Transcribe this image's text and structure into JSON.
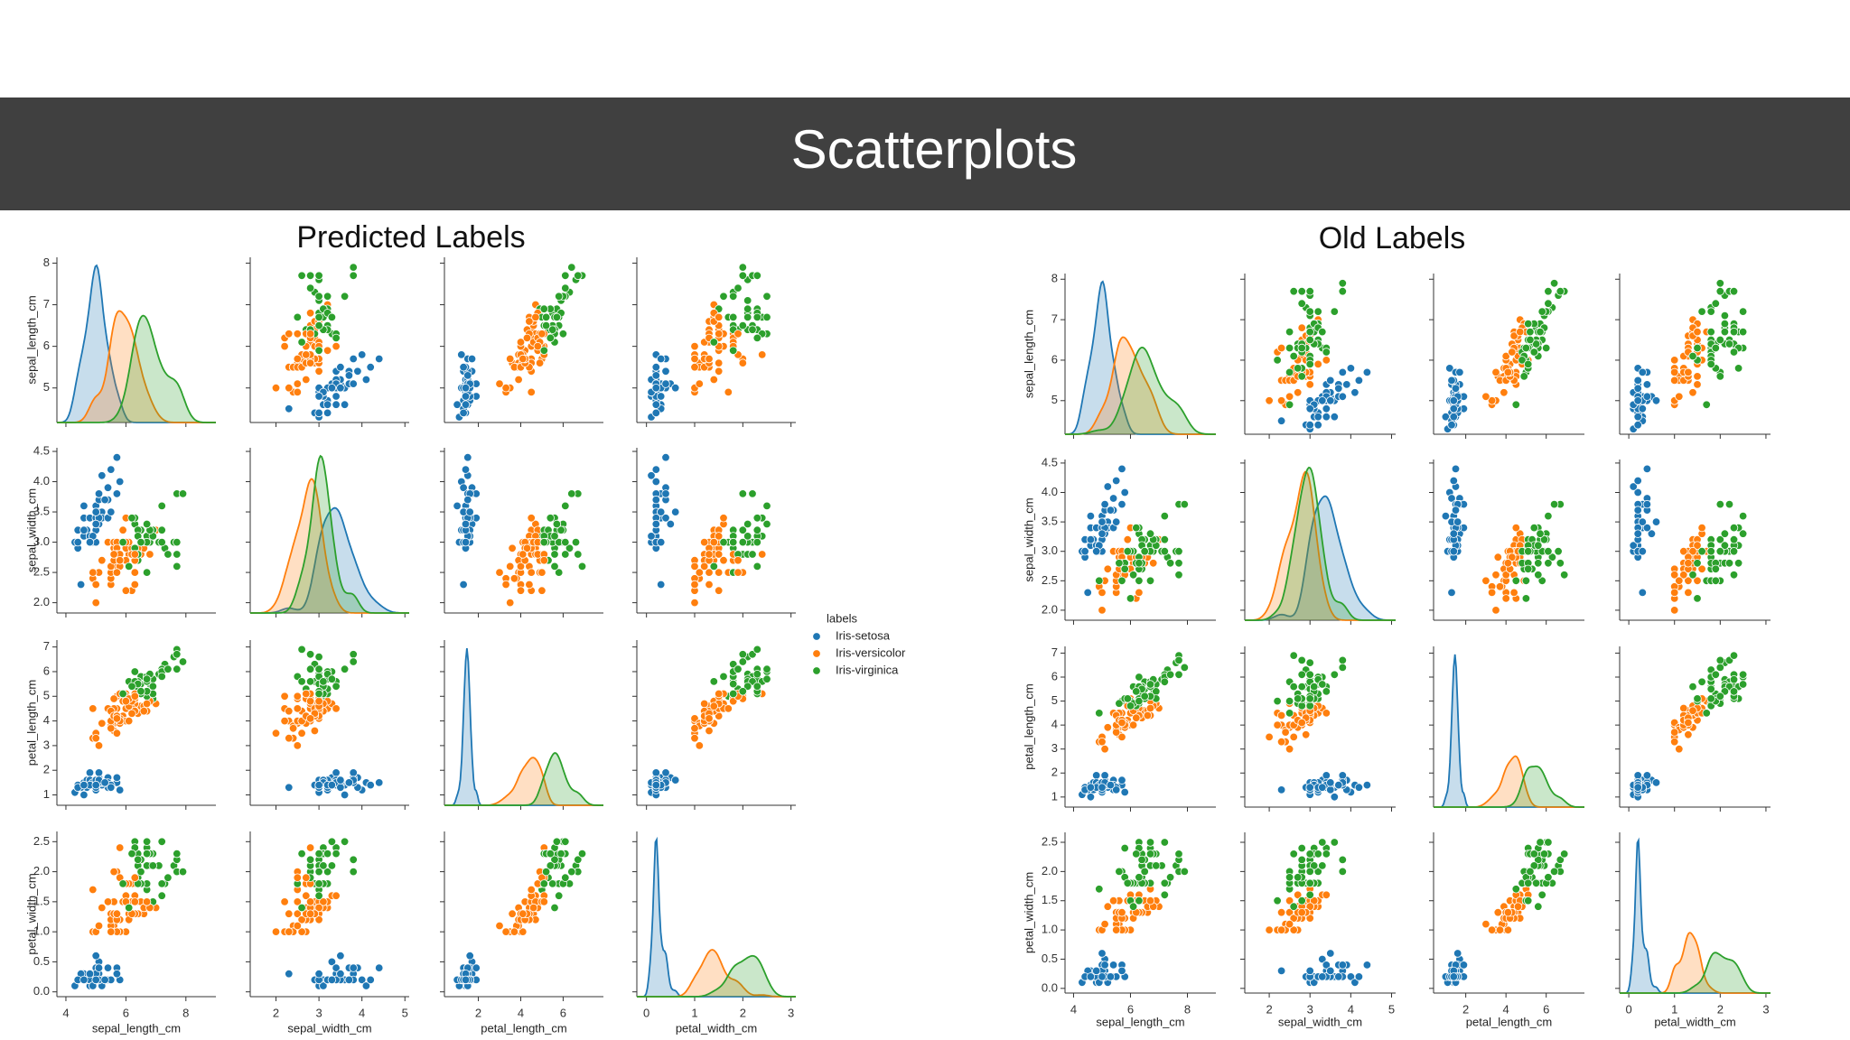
{
  "header": {
    "title": "Scatterplots"
  },
  "dataset": {
    "columns": [
      "sepal_length_cm",
      "sepal_width_cm",
      "petal_length_cm",
      "petal_width_cm"
    ],
    "rows": [
      [
        5.1,
        3.5,
        1.4,
        0.2
      ],
      [
        4.9,
        3.0,
        1.4,
        0.2
      ],
      [
        4.7,
        3.2,
        1.3,
        0.2
      ],
      [
        4.6,
        3.1,
        1.5,
        0.2
      ],
      [
        5.0,
        3.6,
        1.4,
        0.2
      ],
      [
        5.4,
        3.9,
        1.7,
        0.4
      ],
      [
        4.6,
        3.4,
        1.4,
        0.3
      ],
      [
        5.0,
        3.4,
        1.5,
        0.2
      ],
      [
        4.4,
        2.9,
        1.4,
        0.2
      ],
      [
        4.9,
        3.1,
        1.5,
        0.1
      ],
      [
        5.4,
        3.7,
        1.5,
        0.2
      ],
      [
        4.8,
        3.4,
        1.6,
        0.2
      ],
      [
        4.8,
        3.0,
        1.4,
        0.1
      ],
      [
        4.3,
        3.0,
        1.1,
        0.1
      ],
      [
        5.8,
        4.0,
        1.2,
        0.2
      ],
      [
        5.7,
        4.4,
        1.5,
        0.4
      ],
      [
        5.4,
        3.9,
        1.3,
        0.4
      ],
      [
        5.1,
        3.5,
        1.4,
        0.3
      ],
      [
        5.7,
        3.8,
        1.7,
        0.3
      ],
      [
        5.1,
        3.8,
        1.5,
        0.3
      ],
      [
        5.4,
        3.4,
        1.7,
        0.2
      ],
      [
        5.1,
        3.7,
        1.5,
        0.4
      ],
      [
        4.6,
        3.6,
        1.0,
        0.2
      ],
      [
        5.1,
        3.3,
        1.7,
        0.5
      ],
      [
        4.8,
        3.4,
        1.9,
        0.2
      ],
      [
        5.0,
        3.0,
        1.6,
        0.2
      ],
      [
        5.0,
        3.4,
        1.6,
        0.4
      ],
      [
        5.2,
        3.5,
        1.5,
        0.2
      ],
      [
        5.2,
        3.4,
        1.4,
        0.2
      ],
      [
        4.7,
        3.2,
        1.6,
        0.2
      ],
      [
        4.8,
        3.1,
        1.6,
        0.2
      ],
      [
        5.4,
        3.4,
        1.5,
        0.4
      ],
      [
        5.2,
        4.1,
        1.5,
        0.1
      ],
      [
        5.5,
        4.2,
        1.4,
        0.2
      ],
      [
        4.9,
        3.1,
        1.5,
        0.1
      ],
      [
        5.0,
        3.2,
        1.2,
        0.2
      ],
      [
        5.5,
        3.5,
        1.3,
        0.2
      ],
      [
        4.9,
        3.1,
        1.5,
        0.1
      ],
      [
        4.4,
        3.0,
        1.3,
        0.2
      ],
      [
        5.1,
        3.4,
        1.5,
        0.2
      ],
      [
        5.0,
        3.5,
        1.3,
        0.3
      ],
      [
        4.5,
        2.3,
        1.3,
        0.3
      ],
      [
        4.4,
        3.2,
        1.3,
        0.2
      ],
      [
        5.0,
        3.5,
        1.6,
        0.6
      ],
      [
        5.1,
        3.8,
        1.9,
        0.4
      ],
      [
        4.8,
        3.0,
        1.4,
        0.3
      ],
      [
        5.1,
        3.8,
        1.6,
        0.2
      ],
      [
        4.6,
        3.2,
        1.4,
        0.2
      ],
      [
        5.3,
        3.7,
        1.5,
        0.2
      ],
      [
        5.0,
        3.3,
        1.4,
        0.2
      ],
      [
        7.0,
        3.2,
        4.7,
        1.4
      ],
      [
        6.4,
        3.2,
        4.5,
        1.5
      ],
      [
        6.9,
        3.1,
        4.9,
        1.5
      ],
      [
        5.5,
        2.3,
        4.0,
        1.3
      ],
      [
        6.5,
        2.8,
        4.6,
        1.5
      ],
      [
        5.7,
        2.8,
        4.5,
        1.3
      ],
      [
        6.3,
        3.3,
        4.7,
        1.6
      ],
      [
        4.9,
        2.4,
        3.3,
        1.0
      ],
      [
        6.6,
        2.9,
        4.6,
        1.3
      ],
      [
        5.2,
        2.7,
        3.9,
        1.4
      ],
      [
        5.0,
        2.0,
        3.5,
        1.0
      ],
      [
        5.9,
        3.0,
        4.2,
        1.5
      ],
      [
        6.0,
        2.2,
        4.0,
        1.0
      ],
      [
        6.1,
        2.9,
        4.7,
        1.4
      ],
      [
        5.6,
        2.9,
        3.6,
        1.3
      ],
      [
        6.7,
        3.1,
        4.4,
        1.4
      ],
      [
        5.6,
        3.0,
        4.5,
        1.5
      ],
      [
        5.8,
        2.7,
        4.1,
        1.0
      ],
      [
        6.2,
        2.2,
        4.5,
        1.5
      ],
      [
        5.6,
        2.5,
        3.9,
        1.1
      ],
      [
        5.9,
        3.2,
        4.8,
        1.8
      ],
      [
        6.1,
        2.8,
        4.0,
        1.3
      ],
      [
        6.3,
        2.5,
        4.9,
        1.5
      ],
      [
        6.1,
        2.8,
        4.7,
        1.2
      ],
      [
        6.4,
        2.9,
        4.3,
        1.3
      ],
      [
        6.6,
        3.0,
        4.4,
        1.4
      ],
      [
        6.8,
        2.8,
        4.8,
        1.4
      ],
      [
        6.7,
        3.0,
        5.0,
        1.7
      ],
      [
        6.0,
        2.9,
        4.5,
        1.5
      ],
      [
        5.7,
        2.6,
        3.5,
        1.0
      ],
      [
        5.5,
        2.4,
        3.8,
        1.1
      ],
      [
        5.5,
        2.4,
        3.7,
        1.0
      ],
      [
        5.8,
        2.7,
        3.9,
        1.2
      ],
      [
        6.0,
        2.7,
        5.1,
        1.6
      ],
      [
        5.4,
        3.0,
        4.5,
        1.5
      ],
      [
        6.0,
        3.4,
        4.5,
        1.6
      ],
      [
        6.7,
        3.1,
        4.7,
        1.5
      ],
      [
        6.3,
        2.3,
        4.4,
        1.3
      ],
      [
        5.6,
        3.0,
        4.1,
        1.3
      ],
      [
        5.5,
        2.5,
        4.0,
        1.3
      ],
      [
        5.5,
        2.6,
        4.4,
        1.2
      ],
      [
        6.1,
        3.0,
        4.6,
        1.4
      ],
      [
        5.8,
        2.6,
        4.0,
        1.2
      ],
      [
        5.0,
        2.3,
        3.3,
        1.0
      ],
      [
        5.6,
        2.7,
        4.2,
        1.3
      ],
      [
        5.7,
        3.0,
        4.2,
        1.2
      ],
      [
        5.7,
        2.9,
        4.2,
        1.3
      ],
      [
        6.2,
        2.9,
        4.3,
        1.3
      ],
      [
        5.1,
        2.5,
        3.0,
        1.1
      ],
      [
        5.7,
        2.8,
        4.1,
        1.3
      ],
      [
        6.3,
        3.3,
        6.0,
        2.5
      ],
      [
        5.8,
        2.7,
        5.1,
        1.9
      ],
      [
        7.1,
        3.0,
        5.9,
        2.1
      ],
      [
        6.3,
        2.9,
        5.6,
        1.8
      ],
      [
        6.5,
        3.0,
        5.8,
        2.2
      ],
      [
        7.6,
        3.0,
        6.6,
        2.1
      ],
      [
        4.9,
        2.5,
        4.5,
        1.7
      ],
      [
        7.3,
        2.9,
        6.3,
        1.8
      ],
      [
        6.7,
        2.5,
        5.8,
        1.8
      ],
      [
        7.2,
        3.6,
        6.1,
        2.5
      ],
      [
        6.5,
        3.2,
        5.1,
        2.0
      ],
      [
        6.4,
        2.7,
        5.3,
        1.9
      ],
      [
        6.8,
        3.0,
        5.5,
        2.1
      ],
      [
        5.7,
        2.5,
        5.0,
        2.0
      ],
      [
        5.8,
        2.8,
        5.1,
        2.4
      ],
      [
        6.4,
        3.2,
        5.3,
        2.3
      ],
      [
        6.5,
        3.0,
        5.5,
        1.8
      ],
      [
        7.7,
        3.8,
        6.7,
        2.2
      ],
      [
        7.7,
        2.6,
        6.9,
        2.3
      ],
      [
        6.0,
        2.2,
        5.0,
        1.5
      ],
      [
        6.9,
        3.2,
        5.7,
        2.3
      ],
      [
        5.6,
        2.8,
        4.9,
        2.0
      ],
      [
        7.7,
        2.8,
        6.7,
        2.0
      ],
      [
        6.3,
        2.7,
        4.9,
        1.8
      ],
      [
        6.7,
        3.3,
        5.7,
        2.1
      ],
      [
        7.2,
        3.2,
        6.0,
        1.8
      ],
      [
        6.2,
        2.8,
        4.8,
        1.8
      ],
      [
        6.1,
        3.0,
        4.9,
        1.8
      ],
      [
        6.4,
        2.8,
        5.6,
        2.1
      ],
      [
        7.2,
        3.0,
        5.8,
        1.6
      ],
      [
        7.4,
        2.8,
        6.1,
        1.9
      ],
      [
        7.9,
        3.8,
        6.4,
        2.0
      ],
      [
        6.4,
        2.8,
        5.6,
        2.2
      ],
      [
        6.3,
        2.8,
        5.1,
        1.5
      ],
      [
        6.1,
        2.6,
        5.6,
        1.4
      ],
      [
        7.7,
        3.0,
        6.1,
        2.3
      ],
      [
        6.3,
        3.4,
        5.6,
        2.4
      ],
      [
        6.4,
        3.1,
        5.5,
        1.8
      ],
      [
        6.0,
        3.0,
        4.8,
        1.8
      ],
      [
        6.9,
        3.1,
        5.4,
        2.1
      ],
      [
        6.7,
        3.1,
        5.6,
        2.4
      ],
      [
        6.9,
        3.1,
        5.1,
        2.3
      ],
      [
        5.8,
        2.7,
        5.1,
        1.9
      ],
      [
        6.8,
        3.2,
        5.9,
        2.3
      ],
      [
        6.7,
        3.3,
        5.7,
        2.5
      ],
      [
        6.7,
        3.0,
        5.2,
        2.3
      ],
      [
        6.3,
        2.5,
        5.0,
        1.9
      ],
      [
        6.5,
        3.0,
        5.2,
        2.0
      ],
      [
        6.2,
        3.4,
        5.4,
        2.3
      ],
      [
        5.9,
        3.0,
        5.1,
        1.8
      ]
    ]
  },
  "axes": [
    {
      "xlim": [
        3.7,
        9.0
      ],
      "xticks": [
        4,
        6,
        8
      ],
      "ylim": [
        4.17,
        8.14
      ],
      "yticks": [
        5,
        6,
        7,
        8
      ]
    },
    {
      "xlim": [
        1.4,
        5.1
      ],
      "xticks": [
        2,
        3,
        4,
        5
      ],
      "ylim": [
        1.83,
        4.56
      ],
      "yticks": [
        {
          "value": 2.0,
          "label": "2.0"
        },
        2.5,
        {
          "value": 3.0,
          "label": "3.0"
        },
        3.5,
        {
          "value": 4.0,
          "label": "4.0"
        },
        4.5
      ]
    },
    {
      "xlim": [
        0.4,
        7.9
      ],
      "xticks": [
        2,
        4,
        6
      ],
      "ylim": [
        0.58,
        7.28
      ],
      "yticks": [
        1,
        2,
        3,
        4,
        5,
        6,
        7
      ]
    },
    {
      "xlim": [
        -0.2,
        3.1
      ],
      "xticks": [
        0,
        1,
        2,
        3
      ],
      "ylim": [
        -0.08,
        2.67
      ],
      "yticks": [
        {
          "value": 0.0,
          "label": "0.0"
        },
        0.5,
        {
          "value": 1.0,
          "label": "1.0"
        },
        1.5,
        {
          "value": 2.0,
          "label": "2.0"
        },
        2.5
      ]
    }
  ],
  "legend": {
    "title": "labels",
    "names": [
      "Iris-setosa",
      "Iris-versicolor",
      "Iris-virginica"
    ],
    "colors": [
      "#1f77b4",
      "#ff7f0e",
      "#2ca02c"
    ]
  },
  "charts": [
    {
      "type": "pairplot",
      "title": "Predicted Labels",
      "legend": true,
      "labels": [
        0,
        0,
        0,
        0,
        0,
        0,
        0,
        0,
        0,
        0,
        0,
        0,
        0,
        0,
        0,
        0,
        0,
        0,
        0,
        0,
        0,
        0,
        0,
        0,
        0,
        0,
        0,
        0,
        0,
        0,
        0,
        0,
        0,
        0,
        0,
        0,
        0,
        0,
        0,
        0,
        0,
        0,
        0,
        0,
        0,
        0,
        0,
        0,
        0,
        0,
        1,
        1,
        2,
        1,
        1,
        1,
        1,
        1,
        1,
        1,
        1,
        1,
        1,
        1,
        1,
        1,
        1,
        1,
        1,
        1,
        1,
        1,
        1,
        1,
        1,
        1,
        1,
        2,
        1,
        1,
        1,
        1,
        1,
        1,
        1,
        1,
        1,
        1,
        1,
        1,
        1,
        1,
        1,
        1,
        1,
        1,
        1,
        1,
        1,
        1,
        2,
        1,
        2,
        2,
        2,
        2,
        1,
        2,
        2,
        2,
        2,
        2,
        2,
        1,
        1,
        2,
        2,
        2,
        2,
        1,
        2,
        1,
        2,
        1,
        2,
        2,
        1,
        1,
        2,
        2,
        2,
        2,
        2,
        1,
        2,
        2,
        2,
        2,
        1,
        2,
        2,
        2,
        1,
        2,
        2,
        2,
        1,
        2,
        2,
        2
      ]
    },
    {
      "type": "pairplot",
      "title": "Old Labels",
      "legend": false,
      "labels": [
        0,
        0,
        0,
        0,
        0,
        0,
        0,
        0,
        0,
        0,
        0,
        0,
        0,
        0,
        0,
        0,
        0,
        0,
        0,
        0,
        0,
        0,
        0,
        0,
        0,
        0,
        0,
        0,
        0,
        0,
        0,
        0,
        0,
        0,
        0,
        0,
        0,
        0,
        0,
        0,
        0,
        0,
        0,
        0,
        0,
        0,
        0,
        0,
        0,
        0,
        1,
        1,
        1,
        1,
        1,
        1,
        1,
        1,
        1,
        1,
        1,
        1,
        1,
        1,
        1,
        1,
        1,
        1,
        1,
        1,
        1,
        1,
        1,
        1,
        1,
        1,
        1,
        1,
        1,
        1,
        1,
        1,
        1,
        1,
        1,
        1,
        1,
        1,
        1,
        1,
        1,
        1,
        1,
        1,
        1,
        1,
        1,
        1,
        1,
        1,
        2,
        2,
        2,
        2,
        2,
        2,
        2,
        2,
        2,
        2,
        2,
        2,
        2,
        2,
        2,
        2,
        2,
        2,
        2,
        2,
        2,
        2,
        2,
        2,
        2,
        2,
        2,
        2,
        2,
        2,
        2,
        2,
        2,
        2,
        2,
        2,
        2,
        2,
        2,
        2,
        2,
        2,
        2,
        2,
        2,
        2,
        2,
        2,
        2,
        2
      ]
    }
  ]
}
